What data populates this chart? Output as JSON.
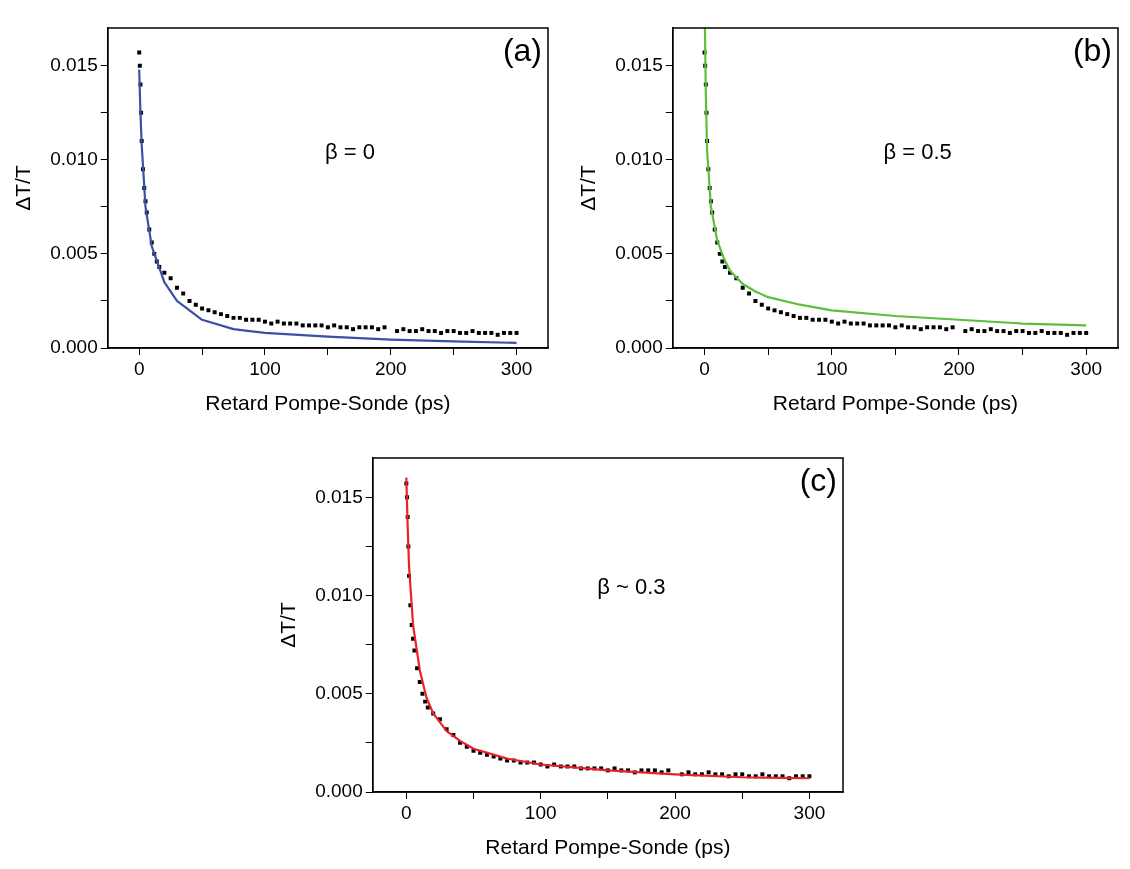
{
  "chart_data": [
    {
      "type": "scatter",
      "xlabel": "Retard Pompe-Sonde (ps)",
      "ylabel": "ΔT/T",
      "annotations": [
        "(a)",
        "β = 0"
      ],
      "marker": "square",
      "grid": false,
      "legend": false,
      "xlim": [
        -25,
        325
      ],
      "xticks": [
        0,
        {
          "value": 50,
          "label": null
        },
        100,
        {
          "value": 150,
          "label": null
        },
        200,
        {
          "value": 250,
          "label": null
        },
        300
      ],
      "ylim": [
        0,
        0.017
      ],
      "yticks": [
        {
          "value": 0,
          "label": "0.000"
        },
        {
          "value": 0.0025,
          "label": null
        },
        {
          "value": 0.005,
          "label": "0.005"
        },
        {
          "value": 0.0075,
          "label": null
        },
        {
          "value": 0.01,
          "label": "0.010"
        },
        {
          "value": 0.0125,
          "label": null
        },
        {
          "value": 0.015,
          "label": "0.015"
        }
      ],
      "series": [
        {
          "type": "scatter",
          "color": "#000000",
          "x": [
            0,
            0.5,
            1,
            1.5,
            2,
            3,
            4,
            5,
            6,
            8,
            10,
            12,
            14,
            16,
            20,
            25,
            30,
            35,
            40,
            45,
            50,
            55,
            60,
            65,
            70,
            75,
            80,
            85,
            90,
            95,
            100,
            105,
            110,
            115,
            120,
            125,
            130,
            135,
            140,
            145,
            150,
            155,
            160,
            165,
            170,
            175,
            180,
            185,
            190,
            195,
            205,
            210,
            215,
            220,
            225,
            230,
            235,
            240,
            245,
            250,
            255,
            260,
            265,
            270,
            275,
            280,
            285,
            290,
            295,
            300
          ],
          "values": [
            0.0157,
            0.015,
            0.014,
            0.0125,
            0.011,
            0.0095,
            0.0085,
            0.0078,
            0.0072,
            0.0063,
            0.0056,
            0.005,
            0.0046,
            0.0043,
            0.004,
            0.0037,
            0.0032,
            0.0029,
            0.0025,
            0.0023,
            0.0021,
            0.002,
            0.0019,
            0.0018,
            0.0017,
            0.0016,
            0.0016,
            0.0015,
            0.0015,
            0.0015,
            0.0014,
            0.0013,
            0.0014,
            0.0013,
            0.0013,
            0.0013,
            0.0012,
            0.0012,
            0.0012,
            0.0012,
            0.0011,
            0.0012,
            0.0011,
            0.0011,
            0.001,
            0.0011,
            0.0011,
            0.0011,
            0.001,
            0.0011,
            0.0009,
            0.001,
            0.0009,
            0.0009,
            0.001,
            0.0009,
            0.0009,
            0.0008,
            0.0009,
            0.0009,
            0.0008,
            0.0008,
            0.0009,
            0.0008,
            0.0008,
            0.0008,
            0.0007,
            0.0008,
            0.0008,
            0.0008
          ]
        },
        {
          "type": "line",
          "color": "#3a4fa6",
          "marker": "none",
          "x": [
            0,
            1,
            2,
            5,
            10,
            20,
            30,
            50,
            75,
            100,
            150,
            200,
            250,
            300
          ],
          "values": [
            0.0148,
            0.0125,
            0.0108,
            0.0075,
            0.0054,
            0.0035,
            0.0025,
            0.0015,
            0.001,
            0.0008,
            0.0006,
            0.00045,
            0.00035,
            0.00027
          ]
        }
      ]
    },
    {
      "type": "scatter",
      "xlabel": "Retard Pompe-Sonde (ps)",
      "ylabel": "ΔT/T",
      "annotations": [
        "(b)",
        "β = 0.5"
      ],
      "marker": "square",
      "grid": false,
      "legend": false,
      "xlim": [
        -25,
        325
      ],
      "xticks": [
        0,
        {
          "value": 50,
          "label": null
        },
        100,
        {
          "value": 150,
          "label": null
        },
        200,
        {
          "value": 250,
          "label": null
        },
        300
      ],
      "ylim": [
        0,
        0.017
      ],
      "yticks": [
        {
          "value": 0,
          "label": "0.000"
        },
        {
          "value": 0.0025,
          "label": null
        },
        {
          "value": 0.005,
          "label": "0.005"
        },
        {
          "value": 0.0075,
          "label": null
        },
        {
          "value": 0.01,
          "label": "0.010"
        },
        {
          "value": 0.0125,
          "label": null
        },
        {
          "value": 0.015,
          "label": "0.015"
        }
      ],
      "series": [
        {
          "type": "scatter",
          "color": "#000000",
          "x": [
            0,
            0.5,
            1,
            1.5,
            2,
            3,
            4,
            5,
            6,
            8,
            10,
            12,
            14,
            16,
            20,
            25,
            30,
            35,
            40,
            45,
            50,
            55,
            60,
            65,
            70,
            75,
            80,
            85,
            90,
            95,
            100,
            105,
            110,
            115,
            120,
            125,
            130,
            135,
            140,
            145,
            150,
            155,
            160,
            165,
            170,
            175,
            180,
            185,
            190,
            195,
            205,
            210,
            215,
            220,
            225,
            230,
            235,
            240,
            245,
            250,
            255,
            260,
            265,
            270,
            275,
            280,
            285,
            290,
            295,
            300
          ],
          "values": [
            0.0157,
            0.015,
            0.014,
            0.0125,
            0.011,
            0.0095,
            0.0085,
            0.0078,
            0.0072,
            0.0063,
            0.0056,
            0.005,
            0.0046,
            0.0043,
            0.004,
            0.0037,
            0.0032,
            0.0029,
            0.0025,
            0.0023,
            0.0021,
            0.002,
            0.0019,
            0.0018,
            0.0017,
            0.0016,
            0.0016,
            0.0015,
            0.0015,
            0.0015,
            0.0014,
            0.0013,
            0.0014,
            0.0013,
            0.0013,
            0.0013,
            0.0012,
            0.0012,
            0.0012,
            0.0012,
            0.0011,
            0.0012,
            0.0011,
            0.0011,
            0.001,
            0.0011,
            0.0011,
            0.0011,
            0.001,
            0.0011,
            0.0009,
            0.001,
            0.0009,
            0.0009,
            0.001,
            0.0009,
            0.0009,
            0.0008,
            0.0009,
            0.0009,
            0.0008,
            0.0008,
            0.0009,
            0.0008,
            0.0008,
            0.0008,
            0.0007,
            0.0008,
            0.0008,
            0.0008
          ]
        },
        {
          "type": "line",
          "color": "#5cbf3c",
          "marker": "none",
          "x": [
            0.3,
            1,
            2,
            5,
            10,
            15,
            20,
            30,
            40,
            50,
            75,
            100,
            150,
            200,
            250,
            300
          ],
          "values": [
            0.017,
            0.0135,
            0.0105,
            0.0075,
            0.0057,
            0.0048,
            0.0041,
            0.0034,
            0.003,
            0.0027,
            0.0023,
            0.002,
            0.0017,
            0.0015,
            0.0013,
            0.0012
          ]
        }
      ]
    },
    {
      "type": "scatter",
      "xlabel": "Retard Pompe-Sonde (ps)",
      "ylabel": "ΔT/T",
      "annotations": [
        "(c)",
        "β ~ 0.3"
      ],
      "marker": "square",
      "grid": false,
      "legend": false,
      "xlim": [
        -25,
        325
      ],
      "xticks": [
        0,
        {
          "value": 50,
          "label": null
        },
        100,
        {
          "value": 150,
          "label": null
        },
        200,
        {
          "value": 250,
          "label": null
        },
        300
      ],
      "ylim": [
        0,
        0.017
      ],
      "yticks": [
        {
          "value": 0,
          "label": "0.000"
        },
        {
          "value": 0.0025,
          "label": null
        },
        {
          "value": 0.005,
          "label": "0.005"
        },
        {
          "value": 0.0075,
          "label": null
        },
        {
          "value": 0.01,
          "label": "0.010"
        },
        {
          "value": 0.0125,
          "label": null
        },
        {
          "value": 0.015,
          "label": "0.015"
        }
      ],
      "series": [
        {
          "type": "scatter",
          "color": "#000000",
          "x": [
            0,
            0.5,
            1,
            1.5,
            2,
            3,
            4,
            5,
            6,
            8,
            10,
            12,
            14,
            16,
            20,
            25,
            30,
            35,
            40,
            45,
            50,
            55,
            60,
            65,
            70,
            75,
            80,
            85,
            90,
            95,
            100,
            105,
            110,
            115,
            120,
            125,
            130,
            135,
            140,
            145,
            150,
            155,
            160,
            165,
            170,
            175,
            180,
            185,
            190,
            195,
            205,
            210,
            215,
            220,
            225,
            230,
            235,
            240,
            245,
            250,
            255,
            260,
            265,
            270,
            275,
            280,
            285,
            290,
            295,
            300
          ],
          "values": [
            0.0157,
            0.015,
            0.014,
            0.0125,
            0.011,
            0.0095,
            0.0085,
            0.0078,
            0.0072,
            0.0063,
            0.0056,
            0.005,
            0.0046,
            0.0043,
            0.004,
            0.0037,
            0.0032,
            0.0029,
            0.0025,
            0.0023,
            0.0021,
            0.002,
            0.0019,
            0.0018,
            0.0017,
            0.0016,
            0.0016,
            0.0015,
            0.0015,
            0.0015,
            0.0014,
            0.0013,
            0.0014,
            0.0013,
            0.0013,
            0.0013,
            0.0012,
            0.0012,
            0.0012,
            0.0012,
            0.0011,
            0.0012,
            0.0011,
            0.0011,
            0.001,
            0.0011,
            0.0011,
            0.0011,
            0.001,
            0.0011,
            0.0009,
            0.001,
            0.0009,
            0.0009,
            0.001,
            0.0009,
            0.0009,
            0.0008,
            0.0009,
            0.0009,
            0.0008,
            0.0008,
            0.0009,
            0.0008,
            0.0008,
            0.0008,
            0.0007,
            0.0008,
            0.0008,
            0.0008
          ]
        },
        {
          "type": "line",
          "color": "#e8222a",
          "marker": "none",
          "x": [
            0,
            1,
            2,
            5,
            10,
            15,
            20,
            30,
            40,
            50,
            75,
            100,
            150,
            200,
            250,
            300
          ],
          "values": [
            0.016,
            0.0135,
            0.0115,
            0.0085,
            0.0062,
            0.0048,
            0.004,
            0.0031,
            0.0026,
            0.0022,
            0.0017,
            0.0014,
            0.0011,
            0.0009,
            0.00075,
            0.0007
          ]
        }
      ]
    }
  ]
}
